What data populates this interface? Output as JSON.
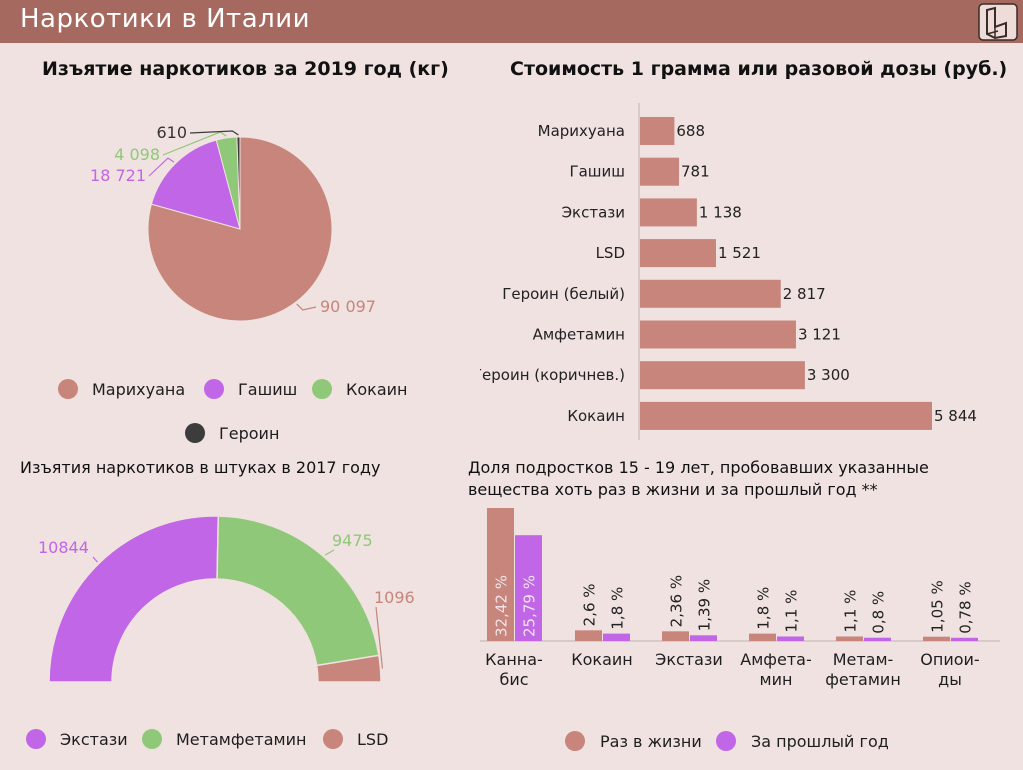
{
  "header": {
    "title": "Наркотики в Италии",
    "logo_icon": "brand-logo-icon",
    "background_color": "#a6695f"
  },
  "colors": {
    "background": "#efe2e0",
    "pink_brown": "#c7857b",
    "purple": "#c066e6",
    "green": "#8fc878",
    "dark": "#3c3c3c"
  },
  "chart_data": [
    {
      "type": "pie",
      "title": "Изъятие наркотиков за 2019 год (кг)",
      "slices": [
        {
          "label": "Марихуана",
          "value": 90097,
          "value_label": "90 097",
          "color": "#c7857b"
        },
        {
          "label": "Гашиш",
          "value": 18721,
          "value_label": "18 721",
          "color": "#c066e6"
        },
        {
          "label": "Кокаин",
          "value": 4098,
          "value_label": "4 098",
          "color": "#8fc878"
        },
        {
          "label": "Героин",
          "value": 610,
          "value_label": "610",
          "color": "#3c3c3c"
        }
      ],
      "legend": [
        "Марихуана",
        "Гашиш",
        "Кокаин",
        "Героин"
      ],
      "legend_position": "bottom"
    },
    {
      "type": "bar",
      "orientation": "horizontal",
      "title": "Стоимость 1 грамма или разовой дозы (руб.)",
      "categories": [
        "Марихуана",
        "Гашиш",
        "Экстази",
        "LSD",
        "Героин (белый)",
        "Амфетамин",
        "Героин (коричнев.)",
        "Кокаин"
      ],
      "values": [
        688,
        781,
        1138,
        1521,
        2817,
        3121,
        3300,
        5844
      ],
      "value_labels": [
        "688",
        "781",
        "1 138",
        "1 521",
        "2 817",
        "3 121",
        "3 300",
        "5 844"
      ],
      "color": "#c7857b"
    },
    {
      "type": "pie",
      "subtype": "semicircle",
      "title": "Изъятия наркотиков в штуках в 2017 году",
      "slices": [
        {
          "label": "Экстази",
          "value": 10844,
          "value_label": "10844",
          "color": "#c066e6"
        },
        {
          "label": "Метамфетамин",
          "value": 9475,
          "value_label": "9475",
          "color": "#8fc878"
        },
        {
          "label": "LSD",
          "value": 1096,
          "value_label": "1096",
          "color": "#c7857b"
        }
      ],
      "legend": [
        "Экстази",
        "Метамфетамин",
        "LSD"
      ],
      "legend_position": "bottom"
    },
    {
      "type": "bar",
      "title": "Доля подростков 15 - 19 лет, пробовавших указанные вещества хоть раз в жизни и за прошлый год **",
      "categories": [
        [
          "Канна-",
          "бис"
        ],
        [
          "Кокаин"
        ],
        [
          "Экстази"
        ],
        [
          "Амфета-",
          "мин"
        ],
        [
          "Метам-",
          "фетамин"
        ],
        [
          "Опиои-",
          "ды"
        ]
      ],
      "series": [
        {
          "name": "Раз в жизни",
          "color": "#c7857b",
          "values": [
            32.42,
            2.6,
            2.36,
            1.8,
            1.1,
            1.05
          ],
          "value_labels": [
            "32,42 %",
            "2,6 %",
            "2,36 %",
            "1,8 %",
            "1,1 %",
            "1,05 %"
          ]
        },
        {
          "name": "За прошлый год",
          "color": "#c066e6",
          "values": [
            25.79,
            1.8,
            1.39,
            1.1,
            0.8,
            0.78
          ],
          "value_labels": [
            "25,79 %",
            "1,8 %",
            "1,39 %",
            "1,1 %",
            "0,8 %",
            "0,78 %"
          ]
        }
      ],
      "legend_position": "bottom"
    }
  ]
}
